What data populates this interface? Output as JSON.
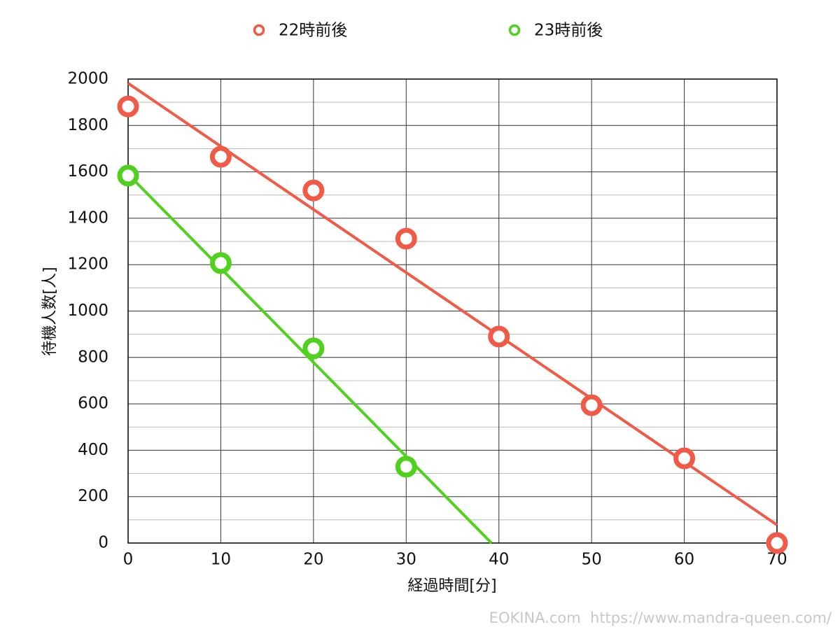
{
  "chart_data": {
    "type": "scatter",
    "x_label": "経過時間[分]",
    "y_label": "待機人数[人]",
    "x": [
      0,
      10,
      20,
      30,
      40,
      50,
      60,
      70
    ],
    "series": [
      {
        "name": "22時前後",
        "color": "#f05a46",
        "values": [
          1882,
          1665,
          1520,
          1312,
          890,
          594,
          365,
          0
        ],
        "trend": {
          "x": [
            0,
            70
          ],
          "values": [
            1982,
            78
          ]
        }
      },
      {
        "name": "23時前後",
        "color": "#4fd11e",
        "values": [
          1584,
          1207,
          839,
          329,
          null,
          null,
          null,
          null
        ],
        "trend": {
          "x": [
            0,
            39.2
          ],
          "values": [
            1590,
            0
          ]
        }
      }
    ],
    "xlim": [
      0,
      70
    ],
    "xticks": [
      0,
      10,
      20,
      30,
      40,
      50,
      60,
      70
    ],
    "ylim": [
      0,
      2000
    ],
    "yticks": [
      0,
      200,
      400,
      600,
      800,
      1000,
      1200,
      1400,
      1600,
      1800,
      2000
    ],
    "y_minor_ticks": [
      100,
      300,
      500,
      700,
      900,
      1100,
      1300,
      1500,
      1700,
      1900
    ],
    "grid": true,
    "legend": "top",
    "watermark": "EOKINA.com  https://www.mandra-queen.com/"
  }
}
